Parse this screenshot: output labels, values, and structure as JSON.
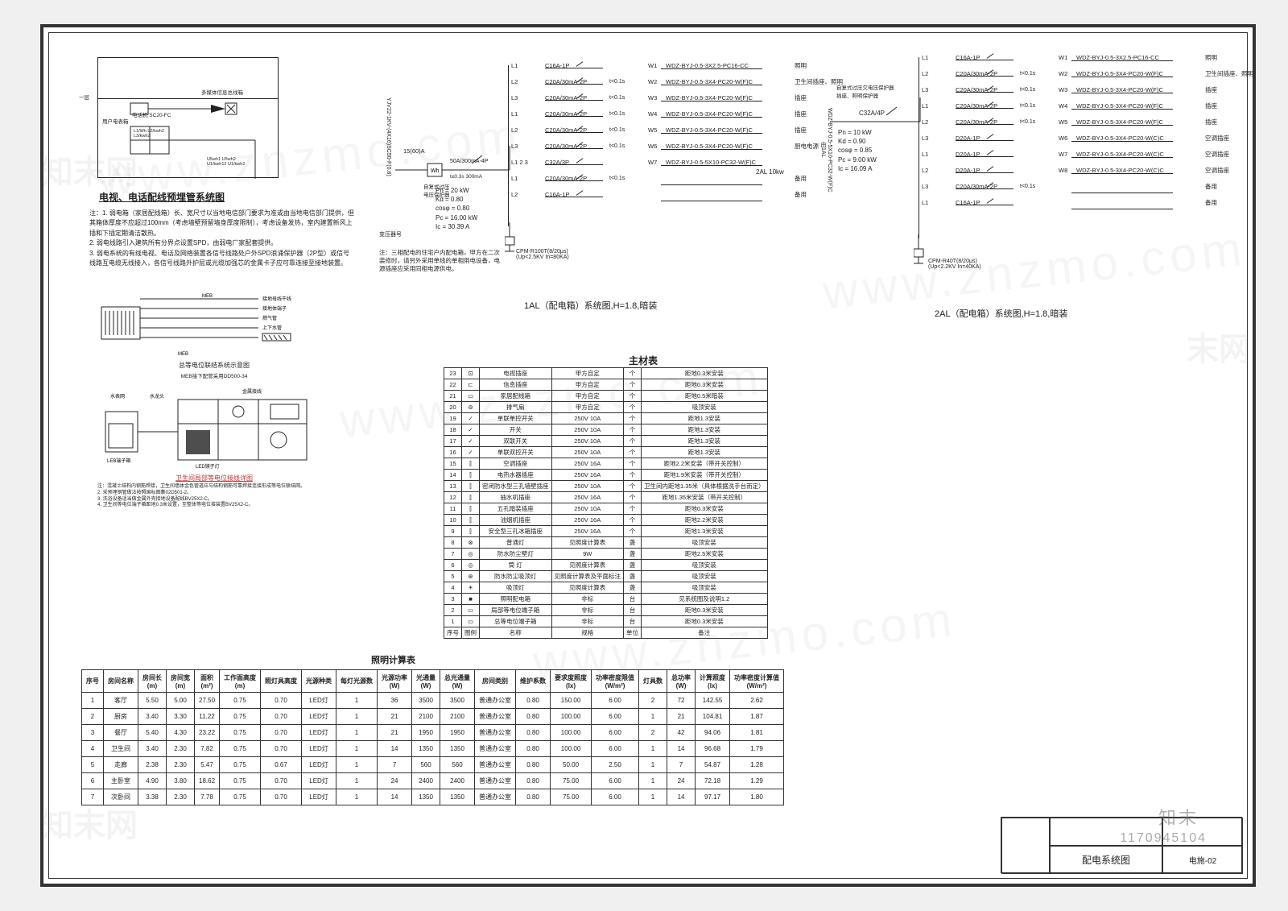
{
  "section_title": "电视、电话配线预埋管系统图",
  "riser": {
    "floor_label": "一层",
    "label_a": "多媒体信息总线箱",
    "label_b": "电话机 SC20-FC",
    "meter_caption": "用户电表箱",
    "notes_small": [
      "L1/Wh L2/kwh2\\nL3/kwh2",
      "U5wh1 U5wh2\\nU1/kwh12 U1/kwh2"
    ]
  },
  "notes": [
    "注：1. 弱电箱（家居配线箱）长、宽尺寸以当地电信部门要求为准或由当地电信部门提供，但其箱体厚度不应超过100mm（考虑墙壁预留墙身厚度限制），考虑设备发热，室内建置新风上插和下插定期清洁散热。",
    "2. 弱电线路引入建筑所有分界点设置SPD，由弱电厂家配套提供。",
    "3. 弱电系统的有线电视、电话及网络装置各信号线路处户外SPD浪涌保护器（2P型）或信号线路互电缆无线接入，各信号线路外护层或光缆加强芯的金属卡子应可靠连接至接地装置。"
  ],
  "mini_captions": {
    "eq": "总等电位联结系统示意图",
    "eq_sub": "MEB接下配管采用DD500-34",
    "bath": "卫生间局部等电位接线详图"
  },
  "panel_1al": {
    "title": "1AL（配电箱）系统图,H=1.8,暗装",
    "feeder_top": "15(60)A",
    "feeder_label": "Wh",
    "main_breaker": "50A/300mA-4P",
    "main_t": "t≤0.3s 300mA",
    "sub_label": "双速肘杆",
    "feeder_side": "YJV22-1KV-(4X16)SC50-F(0.8)",
    "feeder_note": "变压器号",
    "params": [
      "Pn = 20 kW",
      "Kd = 0.80",
      "cosφ = 0.80",
      "Pc = 16.00 kW",
      "Ic = 30.39 A"
    ],
    "note_box": "注：三相配电的住宅户内配电箱，甲方在二次装修时，请另外采用单线的单相用电设备，电源插座应采用同相电源供电。",
    "spd": "CPM-R100T(8/20μs)\\n(Up<2.5KV In=80KA)",
    "sub_2al": "2AL 10kw",
    "sep_label": "自复式过压\\n电压保护器",
    "circuits": [
      {
        "phase": "L1",
        "brk": "C16A-1P",
        "t": "",
        "w": "W1",
        "cable": "WDZ-BYJ-0.5-3X2.5-PC16-CC",
        "desc": "照明"
      },
      {
        "phase": "L2",
        "brk": "C20A/30mA-2P",
        "t": "t<0.1s",
        "w": "W2",
        "cable": "WDZ-BYJ-0.5-3X4-PC20-W(F)C",
        "desc": "卫生间插座、照明"
      },
      {
        "phase": "L3",
        "brk": "C20A/30mA-2P",
        "t": "t<0.1s",
        "w": "W3",
        "cable": "WDZ-BYJ-0.5-3X4-PC20-W(F)C",
        "desc": "插座"
      },
      {
        "phase": "L1",
        "brk": "C20A/30mA-2P",
        "t": "t<0.1s",
        "w": "W4",
        "cable": "WDZ-BYJ-0.5-3X4-PC20-W(F)C",
        "desc": "插座"
      },
      {
        "phase": "L2",
        "brk": "C20A/30mA-2P",
        "t": "t<0.1s",
        "w": "W5",
        "cable": "WDZ-BYJ-0.5-3X4-PC20-W(F)C",
        "desc": "插座"
      },
      {
        "phase": "L3",
        "brk": "C20A/30mA-2P",
        "t": "t<0.1s",
        "w": "W6",
        "cable": "WDZ-BYJ-0.5-3X4-PC20-W(F)C",
        "desc": "厨电电源"
      },
      {
        "phase": "L1 2 3",
        "brk": "C32A/3P",
        "t": "",
        "w": "W7",
        "cable": "WDZ-BYJ-0.5-5X10-PC32-W(F)C",
        "desc": ""
      },
      {
        "phase": "L1",
        "brk": "C20A/30mA-2P",
        "t": "t<0.1s",
        "w": "",
        "cable": "",
        "desc": "备用"
      },
      {
        "phase": "L2",
        "brk": "C16A-1P",
        "t": "",
        "w": "",
        "cable": "",
        "desc": "备用"
      }
    ]
  },
  "panel_2al": {
    "title": "2AL（配电箱）系统图,H=1.8,暗装",
    "main_breaker": "C32A/4P",
    "feeder_side": "WDZ-BYJ-0.5-5X10-PC32-W(F)C\\n由1AL",
    "sep_label": "自复式过压欠电压保护器\\n插座、照明保护器",
    "params": [
      "Pn = 10 kW",
      "Kd = 0.90",
      "cosφ = 0.85",
      "Pc = 9.00 kW",
      "Ic = 16.09 A"
    ],
    "spd": "CPM-R40T(8/20μs)\\n(Up<2.2KV In=40KA)",
    "circuits": [
      {
        "phase": "L1",
        "brk": "C16A-1P",
        "t": "",
        "w": "W1",
        "cable": "WDZ-BYJ-0.5-3X2.5-PC16-CC",
        "desc": "照明"
      },
      {
        "phase": "L2",
        "brk": "C20A/30mA-2P",
        "t": "t<0.1s",
        "w": "W2",
        "cable": "WDZ-BYJ-0.5-3X4-PC20-W(F)C",
        "desc": "卫生间插座、照明"
      },
      {
        "phase": "L3",
        "brk": "C20A/30mA-2P",
        "t": "t<0.1s",
        "w": "W3",
        "cable": "WDZ-BYJ-0.5-3X4-PC20-W(F)C",
        "desc": "插座"
      },
      {
        "phase": "L1",
        "brk": "C20A/30mA-2P",
        "t": "t<0.1s",
        "w": "W4",
        "cable": "WDZ-BYJ-0.5-3X4-PC20-W(F)C",
        "desc": "插座"
      },
      {
        "phase": "L2",
        "brk": "C20A/30mA-2P",
        "t": "t<0.1s",
        "w": "W5",
        "cable": "WDZ-BYJ-0.5-3X4-PC20-W(F)C",
        "desc": "插座"
      },
      {
        "phase": "L3",
        "brk": "D20A-1P",
        "t": "",
        "w": "W6",
        "cable": "WDZ-BYJ-0.5-3X4-PC20-W(C)C",
        "desc": "空调插座"
      },
      {
        "phase": "L1",
        "brk": "D20A-1P",
        "t": "",
        "w": "W7",
        "cable": "WDZ-BYJ-0.5-3X4-PC20-W(C)C",
        "desc": "空调插座"
      },
      {
        "phase": "L2",
        "brk": "D20A-1P",
        "t": "",
        "w": "W8",
        "cable": "WDZ-BYJ-0.5-3X4-PC20-W(C)C",
        "desc": "空调插座"
      },
      {
        "phase": "L3",
        "brk": "C20A/30mA-2P",
        "t": "t<0.1s",
        "w": "",
        "cable": "",
        "desc": "备用"
      },
      {
        "phase": "L1",
        "brk": "C16A-1P",
        "t": "",
        "w": "",
        "cable": "",
        "desc": "备用"
      }
    ]
  },
  "mat_title": "主材表",
  "mat_head": [
    "序号",
    "图例",
    "名称",
    "规格",
    "单位",
    "备注"
  ],
  "mat_rows": [
    [
      "23",
      "⊡",
      "电视插座",
      "甲方自定",
      "个",
      "距地0.3米安装"
    ],
    [
      "22",
      "⊏",
      "信息插座",
      "甲方自定",
      "个",
      "距地0.3米安装"
    ],
    [
      "21",
      "▭",
      "家居配线箱",
      "甲方自定",
      "个",
      "距地0.5米暗装"
    ],
    [
      "20",
      "⊚",
      "排气扇",
      "甲方自定",
      "个",
      "吸顶安装"
    ],
    [
      "19",
      "✓",
      "单联单控开关",
      "250V 10A",
      "个",
      "距地1.3安装"
    ],
    [
      "18",
      "✓",
      "开关",
      "250V 10A",
      "个",
      "距地1.3安装"
    ],
    [
      "17",
      "✓",
      "双联开关",
      "250V 10A",
      "个",
      "距地1.3安装"
    ],
    [
      "16",
      "✓",
      "单联双控开关",
      "250V 10A",
      "个",
      "距地1.3安装"
    ],
    [
      "15",
      "⫿",
      "空调插座",
      "250V 16A",
      "个",
      "距地2.2米安装（带开关控制）"
    ],
    [
      "14",
      "⫿",
      "电热水器插座",
      "250V 16A",
      "个",
      "距地1.9米安装（带开关控制）"
    ],
    [
      "13",
      "⫿",
      "密闭防水型三孔墙壁插座",
      "250V 10A",
      "个",
      "卫生间内距地1.35米（具体根据洗手台而定）"
    ],
    [
      "12",
      "⫿",
      "抽水机插座",
      "250V 16A",
      "个",
      "距地1.35米安装（带开关控制）"
    ],
    [
      "11",
      "⫿",
      "五孔暗装插座",
      "250V 10A",
      "个",
      "距地0.3米安装"
    ],
    [
      "10",
      "⫿",
      "油烟机插座",
      "250V 16A",
      "个",
      "距地2.2米安装"
    ],
    [
      "9",
      "⫿",
      "安全型三孔冰箱插座",
      "250V 16A",
      "个",
      "距地1.3米安装"
    ],
    [
      "8",
      "⊗",
      "普通灯",
      "见照度计算表",
      "盏",
      "吸顶安装"
    ],
    [
      "7",
      "◎",
      "防水防尘壁灯",
      "9W",
      "盏",
      "距地2.5米安装"
    ],
    [
      "6",
      "◎",
      "筒 灯",
      "见照度计算表",
      "盏",
      "吸顶安装"
    ],
    [
      "5",
      "⊛",
      "防水防尘吸顶灯",
      "见照度计算表及平面标注",
      "盏",
      "吸顶安装"
    ],
    [
      "4",
      "☀",
      "吸顶灯",
      "见照度计算表",
      "盏",
      "吸顶安装"
    ],
    [
      "3",
      "■",
      "照明配电箱",
      "非标",
      "台",
      "见系统图及说明1.2"
    ],
    [
      "2",
      "▭",
      "局部等电位端子箱",
      "非标",
      "台",
      "距地0.3米安装"
    ],
    [
      "1",
      "▭",
      "总等电位端子箱",
      "非标",
      "台",
      "距地0.3米安装"
    ],
    [
      "序号",
      "图例",
      "名称",
      "规格",
      "单位",
      "备注"
    ]
  ],
  "calc_title": "照明计算表",
  "calc_head": [
    "序号",
    "房间名称",
    "房间长\\n(m)",
    "房间宽\\n(m)",
    "面积\\n(m²)",
    "工作面高度\\n(m)",
    "照灯具高度",
    "光源种类",
    "每灯光源数",
    "光源功率\\n(W)",
    "光通量\\n(W)",
    "总光通量\\n(W)",
    "房间类别",
    "维护系数",
    "要求度照度\\n(lx)",
    "功率密度限值\\n(W/m²)",
    "灯具数",
    "总功率\\n(W)",
    "计算照度\\n(lx)",
    "功率密度计算值\\n(W/m²)"
  ],
  "calc_rows": [
    [
      "1",
      "客厅",
      "5.50",
      "5.00",
      "27.50",
      "0.75",
      "0.70",
      "LED灯",
      "1",
      "36",
      "3500",
      "3500",
      "普通办公室",
      "0.80",
      "150.00",
      "6.00",
      "2",
      "72",
      "142.55",
      "2.62"
    ],
    [
      "2",
      "厨房",
      "3.40",
      "3.30",
      "11.22",
      "0.75",
      "0.70",
      "LED灯",
      "1",
      "21",
      "2100",
      "2100",
      "普通办公室",
      "0.80",
      "100.00",
      "6.00",
      "1",
      "21",
      "104.81",
      "1.87"
    ],
    [
      "3",
      "餐厅",
      "5.40",
      "4.30",
      "23.22",
      "0.75",
      "0.70",
      "LED灯",
      "1",
      "21",
      "1950",
      "1950",
      "普通办公室",
      "0.80",
      "100.00",
      "6.00",
      "2",
      "42",
      "94.06",
      "1.81"
    ],
    [
      "4",
      "卫生间",
      "3.40",
      "2.30",
      "7.82",
      "0.75",
      "0.70",
      "LED灯",
      "1",
      "14",
      "1350",
      "1350",
      "普通办公室",
      "0.80",
      "100.00",
      "6.00",
      "1",
      "14",
      "96.68",
      "1.79"
    ],
    [
      "5",
      "走廊",
      "2.38",
      "2.30",
      "5.47",
      "0.75",
      "0.67",
      "LED灯",
      "1",
      "7",
      "560",
      "560",
      "普通办公室",
      "0.80",
      "50.00",
      "2.50",
      "1",
      "7",
      "54.87",
      "1.28"
    ],
    [
      "6",
      "主卧室",
      "4.90",
      "3.80",
      "18.62",
      "0.75",
      "0.70",
      "LED灯",
      "1",
      "24",
      "2400",
      "2400",
      "普通办公室",
      "0.80",
      "75.00",
      "6.00",
      "1",
      "24",
      "72.18",
      "1.29"
    ],
    [
      "7",
      "次卧间",
      "3.38",
      "2.30",
      "7.78",
      "0.75",
      "0.70",
      "LED灯",
      "1",
      "14",
      "1350",
      "1350",
      "普通办公室",
      "0.80",
      "75.00",
      "6.00",
      "1",
      "14",
      "97.17",
      "1.80"
    ]
  ],
  "titleblock": {
    "name": "配电系统图",
    "dwgno": "电施-02"
  },
  "stamp": "知末",
  "stampnum": "1170945104",
  "colors": {
    "line": "#222222",
    "border": "#333333",
    "bg": "#ffffff",
    "wm": "rgba(120,120,120,0.07)"
  }
}
